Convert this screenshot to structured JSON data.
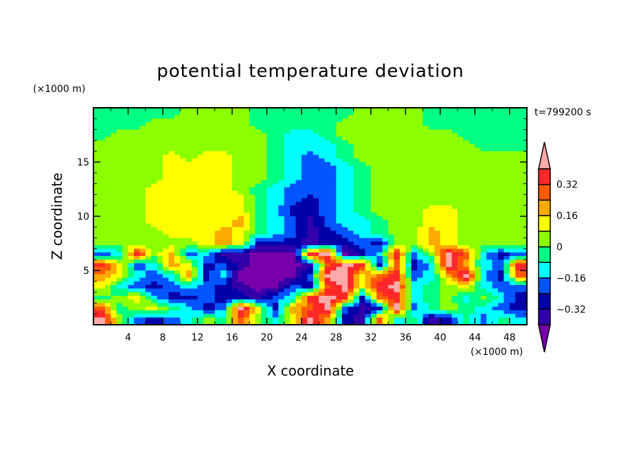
{
  "chart_data": {
    "type": "heatmap",
    "title": "potential temperature deviation",
    "xlabel": "X coordinate",
    "ylabel": "Z coordinate",
    "x_unit": "(×1000 m)",
    "y_unit": "(×1000 m)",
    "time_label": "t=799200 s",
    "xlim": [
      0,
      50
    ],
    "ylim": [
      0,
      20
    ],
    "x_ticks": [
      4,
      8,
      12,
      16,
      20,
      24,
      28,
      32,
      36,
      40,
      44,
      48
    ],
    "y_ticks": [
      5,
      10,
      15
    ],
    "grid_x_centers": [
      1,
      3,
      5,
      7,
      9,
      11,
      13,
      15,
      17,
      19,
      21,
      23,
      25,
      27,
      29,
      31,
      33,
      35,
      37,
      39,
      41,
      43,
      45,
      47,
      49
    ],
    "grid_z_centers": [
      19.5,
      18.5,
      17.5,
      16.5,
      15.5,
      14.5,
      13.5,
      12.5,
      11.5,
      10.5,
      9.5,
      8.5,
      7.5,
      6.5,
      5.5,
      4.5,
      3.5,
      2.5,
      1.5,
      0.5
    ],
    "levels": [
      -0.4,
      -0.32,
      -0.24,
      -0.16,
      -0.08,
      0,
      0.08,
      0.16,
      0.24,
      0.32,
      0.4
    ],
    "colorbar_labels": [
      "0.32",
      "0.16",
      "0",
      "−0.16",
      "−0.32"
    ],
    "colorbar_label_values": [
      0.32,
      0.16,
      0,
      -0.16,
      -0.32
    ],
    "colors": [
      "#7800aa",
      "#3200aa",
      "#0000aa",
      "#0055ff",
      "#00ffff",
      "#00ff82",
      "#8cff00",
      "#ffff00",
      "#ffaa00",
      "#ff5a00",
      "#ff2828",
      "#ffaaaa"
    ],
    "values_code": [
      "GGGGGYYYYGGGGGGYYYYGGGGGG",
      "GGGYYYYYYGGGGGYYYYYGGGGGG",
      "GYYYYYYYYYGCCGYYYYYYYGGGG",
      "YYYYYYYYYYGCCCGYYYYYYYGGG",
      "YYYYLYLLYYGCBCGYYYYYYYYYY",
      "YYYYLLLLYYGCBBCGYYYYYYYYY",
      "YYYYLLLLYYGCBBCGYYYYYYYYY",
      "YYYLLLLLYGCBBBCGYYYYYYYYY",
      "YYYLLLLLLGCBDBCGYYYYYYYYY",
      "YYYLLLLLLGCDDBCGYYYLLYYYY",
      "YYYLLLLLOGCBIBCCGYYLLYYYY",
      "YYYYLLLOLGCBIDBCGYYOLYYYY",
      "YYYYYYLOLDDDIDDBDYYOLYYYY",
      "BCEYOBCIIPPPEKPDCEBYKRCDB",
      "ELBCOLDBIPPPIRKEDRDCKOCBE",
      "OLCBCODCPPPPBKKLREBCOKCDR",
      "LCBDBCBDIPPBDRKLEKCGYLCBB",
      "GYLCDDBDDIBCEKEDRECGYCYCD",
      "RGYLGCDBKLDORKBIDKBGYGCBD",
      "KYBDBCYGRYCLKODIRCGIDGBGC"
    ],
    "code_values": {
      "P": -0.44,
      "I": -0.36,
      "D": -0.28,
      "B": -0.2,
      "C": -0.12,
      "G": -0.04,
      "Y": 0.04,
      "L": 0.12,
      "O": 0.2,
      "R": 0.28,
      "E": 0.36,
      "K": 0.44
    }
  }
}
